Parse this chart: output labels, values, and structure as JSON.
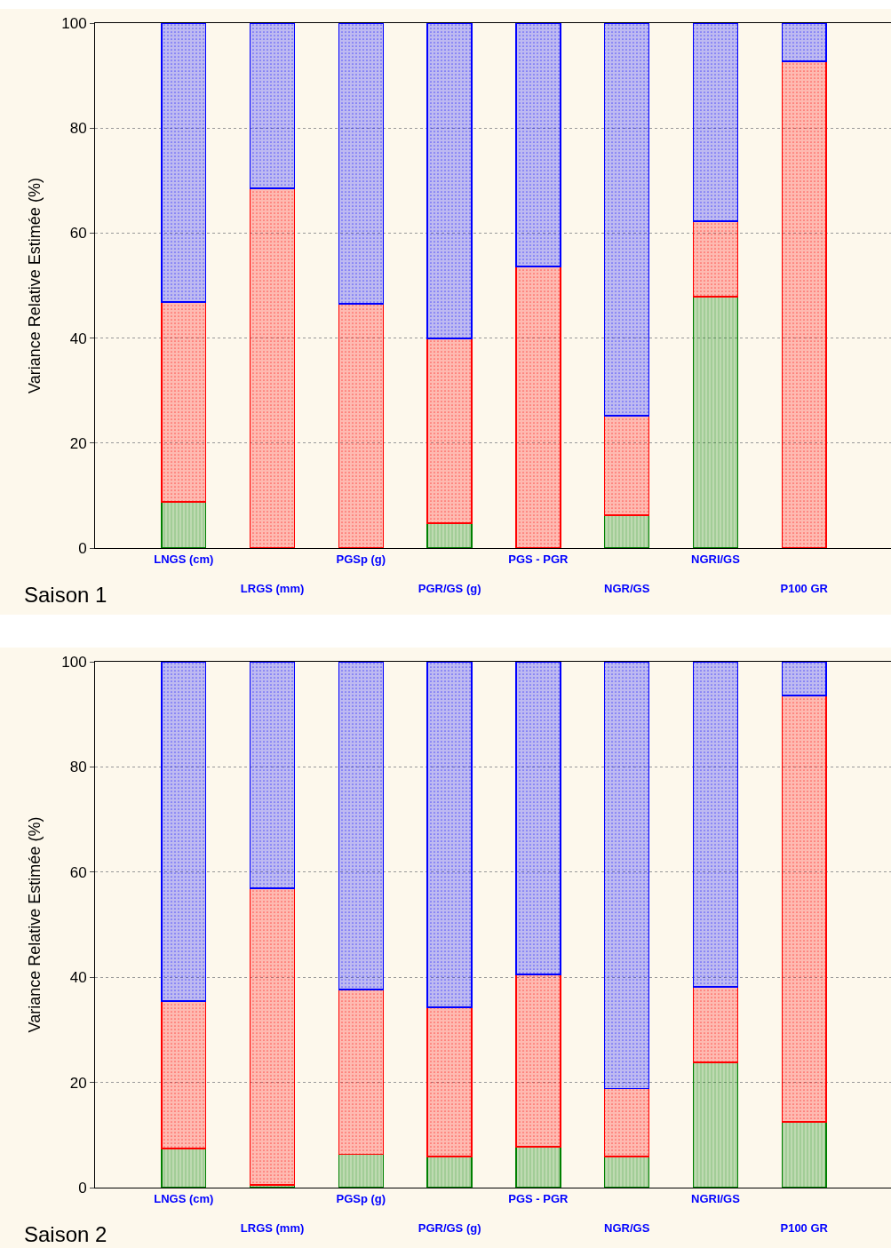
{
  "chart_data": [
    {
      "type": "bar",
      "title": "Saison 1",
      "ylabel": "Variance Relative Estimée (%)",
      "stacked": true,
      "grid": "y",
      "categories": [
        "LNGS (cm)",
        "LRGS (mm)",
        "PGSp (g)",
        "PGR/GS (g)",
        "PGS - PGR",
        "NGR/GS",
        "NGRI/GS",
        "P100 GR"
      ],
      "ylim": [
        0,
        100
      ],
      "yticks": [
        0,
        20,
        40,
        60,
        80,
        100
      ],
      "series": [
        {
          "color": "#008000",
          "values": [
            8.8,
            0,
            0,
            4.7,
            0,
            6.3,
            47.9,
            0
          ]
        },
        {
          "color": "#ff0000",
          "values": [
            38.1,
            68.5,
            46.5,
            35.2,
            53.6,
            18.9,
            14.4,
            92.7
          ]
        },
        {
          "color": "#0000ff",
          "values": [
            53.1,
            31.5,
            53.5,
            60.1,
            46.4,
            74.8,
            37.7,
            7.3
          ]
        }
      ]
    },
    {
      "type": "bar",
      "title": "Saison 2",
      "ylabel": "Variance Relative Estimée (%)",
      "stacked": true,
      "grid": "y",
      "categories": [
        "LNGS (cm)",
        "LRGS (mm)",
        "PGSp (g)",
        "PGR/GS (g)",
        "PGS - PGR",
        "NGR/GS",
        "NGRI/GS",
        "P100 GR"
      ],
      "ylim": [
        0,
        100
      ],
      "yticks": [
        0,
        20,
        40,
        60,
        80,
        100
      ],
      "series": [
        {
          "color": "#008000",
          "values": [
            7.4,
            0.5,
            6.3,
            5.9,
            7.8,
            5.9,
            23.8,
            12.5
          ]
        },
        {
          "color": "#ff0000",
          "values": [
            28.1,
            56.4,
            31.4,
            28.4,
            32.7,
            12.9,
            14.4,
            81.1
          ]
        },
        {
          "color": "#0000ff",
          "values": [
            64.5,
            43.1,
            62.3,
            65.7,
            59.5,
            81.2,
            61.8,
            6.4
          ]
        }
      ]
    }
  ]
}
